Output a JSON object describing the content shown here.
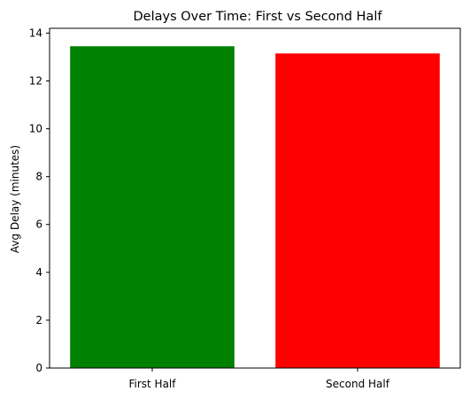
{
  "chart_data": {
    "type": "bar",
    "title": "Delays Over Time: First vs Second Half",
    "xlabel": "",
    "ylabel": "Avg Delay (minutes)",
    "categories": [
      "First Half",
      "Second Half"
    ],
    "values": [
      13.45,
      13.15
    ],
    "colors": [
      "#008000",
      "#ff0000"
    ],
    "ylim": [
      0,
      14.2
    ],
    "yticks": [
      0,
      2,
      4,
      6,
      8,
      10,
      12,
      14
    ],
    "grid": false,
    "legend": "none"
  }
}
